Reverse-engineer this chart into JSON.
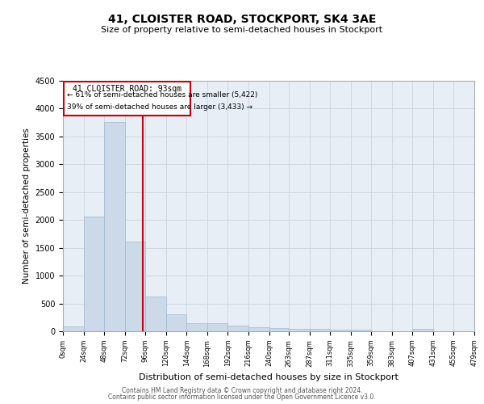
{
  "title": "41, CLOISTER ROAD, STOCKPORT, SK4 3AE",
  "subtitle": "Size of property relative to semi-detached houses in Stockport",
  "xlabel": "Distribution of semi-detached houses by size in Stockport",
  "ylabel": "Number of semi-detached properties",
  "property_size": 93,
  "property_label": "41 CLOISTER ROAD: 93sqm",
  "pct_smaller": 61,
  "pct_larger": 39,
  "n_smaller": 5422,
  "n_larger": 3433,
  "bar_color": "#ccd9e8",
  "bar_edge_color": "#a0b8d0",
  "vline_color": "#cc0000",
  "annotation_box_color": "#cc0000",
  "bg_color": "#e8eef5",
  "grid_color": "#c8d4df",
  "bin_edges": [
    0,
    24,
    48,
    72,
    96,
    120,
    144,
    168,
    192,
    216,
    240,
    263,
    287,
    311,
    335,
    359,
    383,
    407,
    431,
    455,
    479
  ],
  "bin_counts": [
    90,
    2060,
    3760,
    1610,
    620,
    305,
    145,
    140,
    100,
    70,
    60,
    50,
    40,
    35,
    30,
    5,
    5,
    50,
    5,
    5
  ],
  "ylim": [
    0,
    4500
  ],
  "yticks": [
    0,
    500,
    1000,
    1500,
    2000,
    2500,
    3000,
    3500,
    4000,
    4500
  ],
  "footer_line1": "Contains HM Land Registry data © Crown copyright and database right 2024.",
  "footer_line2": "Contains public sector information licensed under the Open Government Licence v3.0."
}
